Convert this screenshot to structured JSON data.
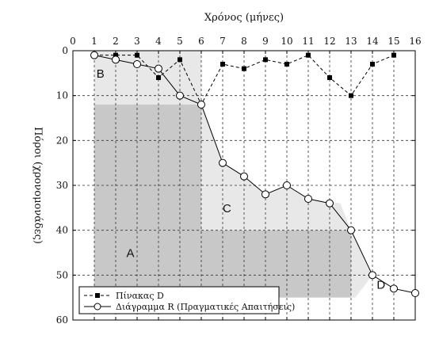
{
  "chart_data": {
    "type": "line",
    "title": "",
    "xlabel": "Χρόνος (μήνες)",
    "ylabel": "Πόροι (χρονομονάδες)",
    "xlim": [
      0,
      16
    ],
    "ylim": [
      0,
      60
    ],
    "x_ticks": [
      "0",
      "1",
      "2",
      "3",
      "4",
      "5",
      "6",
      "7",
      "8",
      "9",
      "10",
      "11",
      "12",
      "13",
      "14",
      "15",
      "16"
    ],
    "y_ticks": [
      "0",
      "10",
      "20",
      "30",
      "40",
      "50",
      "60"
    ],
    "grid": true,
    "series": [
      {
        "name": "Πίνακας D",
        "marker": "square",
        "style": "dashed",
        "color": "#000000",
        "x": [
          1,
          2,
          3,
          4,
          5,
          6,
          7,
          8,
          9,
          10,
          11,
          12,
          13,
          14,
          15
        ],
        "y": [
          1,
          1,
          1,
          6,
          2,
          12,
          3,
          4,
          2,
          3,
          1,
          6,
          10,
          3,
          1
        ]
      },
      {
        "name": "Διάγραμμα R (Πραγματικές Απαιτήσεις)",
        "marker": "circle",
        "style": "solid",
        "color": "#000000",
        "x": [
          1,
          2,
          3,
          4,
          5,
          6,
          7,
          8,
          9,
          10,
          11,
          12,
          13,
          14,
          15,
          16
        ],
        "y": [
          1,
          2,
          3,
          4,
          10,
          12,
          25,
          28,
          32,
          30,
          33,
          34,
          40,
          50,
          53,
          54
        ]
      }
    ],
    "regions": [
      {
        "label": "A",
        "fill": "#c8c8c8"
      },
      {
        "label": "B",
        "fill": "#e8e8e8"
      },
      {
        "label": "C",
        "fill": "#e8e8e8"
      },
      {
        "label": "D",
        "fill": "#e8e8e8"
      }
    ],
    "legend_position": "bottom-left"
  }
}
